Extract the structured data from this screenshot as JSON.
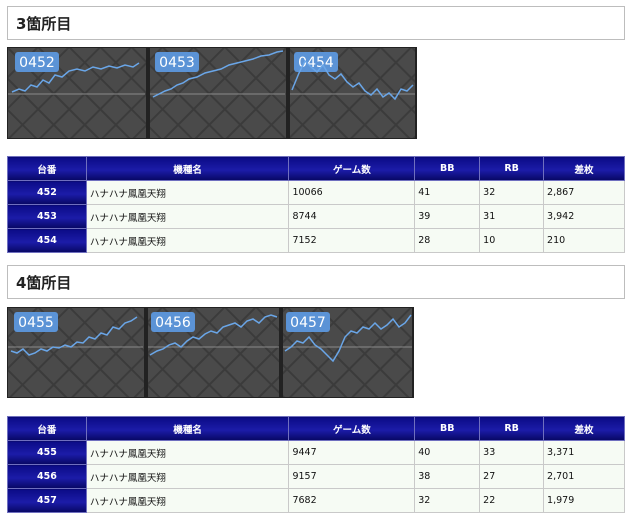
{
  "sections": [
    {
      "title": "3箇所目",
      "charts": [
        "0452",
        "0453",
        "0454"
      ],
      "headers": [
        "台番",
        "機種名",
        "ゲーム数",
        "BB",
        "RB",
        "差枚"
      ],
      "rows": [
        {
          "num": "452",
          "name": "ハナハナ鳳凰天翔",
          "games": "10066",
          "bb": "41",
          "rb": "32",
          "diff": "2,867"
        },
        {
          "num": "453",
          "name": "ハナハナ鳳凰天翔",
          "games": "8744",
          "bb": "39",
          "rb": "31",
          "diff": "3,942"
        },
        {
          "num": "454",
          "name": "ハナハナ鳳凰天翔",
          "games": "7152",
          "bb": "28",
          "rb": "10",
          "diff": "210"
        }
      ]
    },
    {
      "title": "4箇所目",
      "charts": [
        "0455",
        "0456",
        "0457"
      ],
      "headers": [
        "台番",
        "機種名",
        "ゲーム数",
        "BB",
        "RB",
        "差枚"
      ],
      "rows": [
        {
          "num": "455",
          "name": "ハナハナ鳳凰天翔",
          "games": "9447",
          "bb": "40",
          "rb": "33",
          "diff": "3,371"
        },
        {
          "num": "456",
          "name": "ハナハナ鳳凰天翔",
          "games": "9157",
          "bb": "38",
          "rb": "27",
          "diff": "2,701"
        },
        {
          "num": "457",
          "name": "ハナハナ鳳凰天翔",
          "games": "7682",
          "bb": "32",
          "rb": "22",
          "diff": "1,979"
        }
      ]
    }
  ],
  "colors": {
    "line": "#6aa6e8",
    "chip": "#5b93d6",
    "header_navy": "#0b0b86",
    "cell_bg": "#f6fbf4"
  }
}
